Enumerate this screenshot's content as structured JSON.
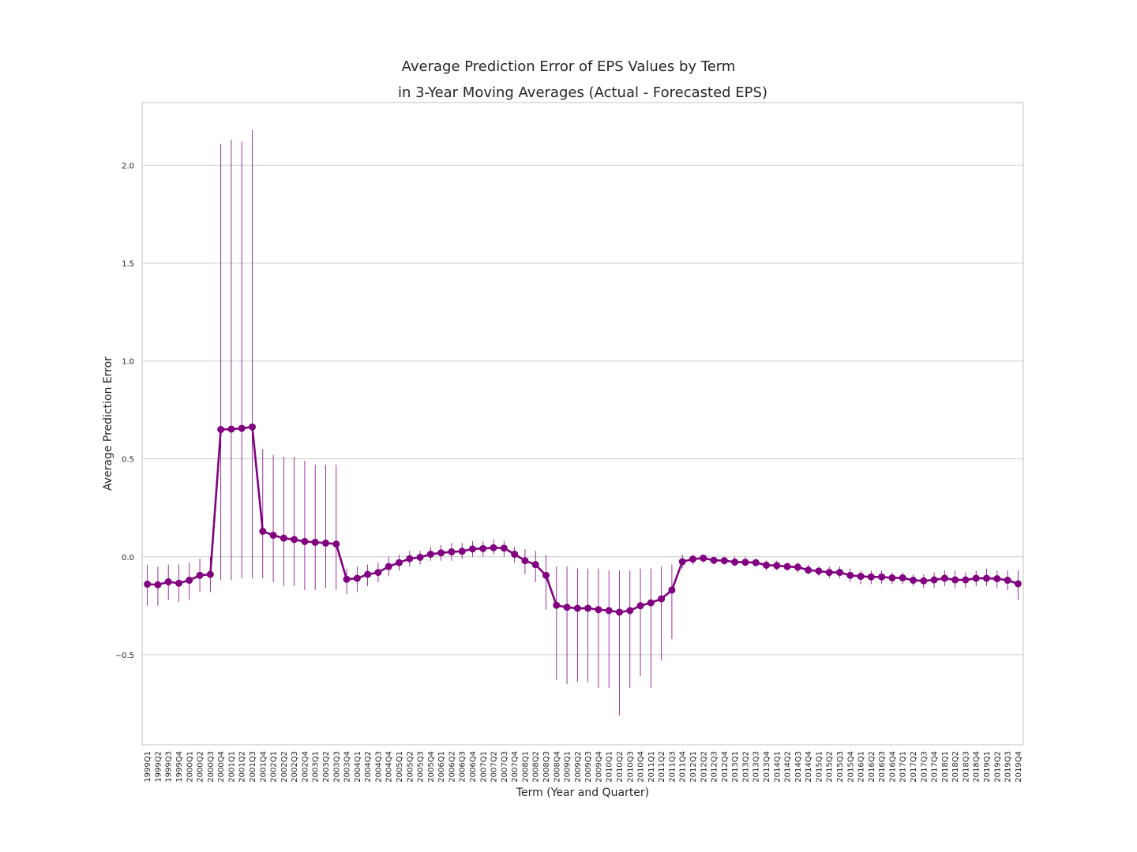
{
  "chart_data": {
    "type": "pointplot",
    "title": "Average Prediction Error of EPS Values by Term",
    "subtitle": "in 3-Year Moving Averages (Actual - Forecasted EPS)",
    "xlabel": "Term (Year and Quarter)",
    "ylabel": "Average Prediction Error",
    "color": "#800080",
    "grid": true,
    "categories": [
      "1999Q1",
      "1999Q2",
      "1999Q3",
      "1999Q4",
      "2000Q1",
      "2000Q2",
      "2000Q3",
      "2000Q4",
      "2001Q1",
      "2001Q2",
      "2001Q3",
      "2001Q4",
      "2002Q1",
      "2002Q2",
      "2002Q3",
      "2002Q4",
      "2003Q1",
      "2003Q2",
      "2003Q3",
      "2003Q4",
      "2004Q1",
      "2004Q2",
      "2004Q3",
      "2004Q4",
      "2005Q1",
      "2005Q2",
      "2005Q3",
      "2005Q4",
      "2006Q1",
      "2006Q2",
      "2006Q3",
      "2006Q4",
      "2007Q1",
      "2007Q2",
      "2007Q3",
      "2007Q4",
      "2008Q1",
      "2008Q2",
      "2008Q3",
      "2008Q4",
      "2009Q1",
      "2009Q2",
      "2009Q3",
      "2009Q4",
      "2010Q1",
      "2010Q2",
      "2010Q3",
      "2010Q4",
      "2011Q1",
      "2011Q2",
      "2011Q3",
      "2011Q4",
      "2012Q1",
      "2012Q2",
      "2012Q3",
      "2012Q4",
      "2013Q1",
      "2013Q2",
      "2013Q3",
      "2013Q4",
      "2014Q1",
      "2014Q2",
      "2014Q3",
      "2014Q4",
      "2015Q1",
      "2015Q2",
      "2015Q3",
      "2015Q4",
      "2016Q1",
      "2016Q2",
      "2016Q3",
      "2016Q4",
      "2017Q1",
      "2017Q2",
      "2017Q3",
      "2017Q4",
      "2018Q1",
      "2018Q2",
      "2018Q3",
      "2018Q4",
      "2019Q1",
      "2019Q2",
      "2019Q3",
      "2019Q4"
    ],
    "values": [
      -0.14,
      -0.143,
      -0.128,
      -0.135,
      -0.12,
      -0.095,
      -0.09,
      0.65,
      0.652,
      0.656,
      0.663,
      0.13,
      0.11,
      0.095,
      0.088,
      0.078,
      0.074,
      0.07,
      0.065,
      -0.115,
      -0.11,
      -0.09,
      -0.08,
      -0.05,
      -0.03,
      -0.01,
      -0.003,
      0.013,
      0.02,
      0.025,
      0.028,
      0.04,
      0.042,
      0.046,
      0.044,
      0.013,
      -0.02,
      -0.04,
      -0.095,
      -0.248,
      -0.258,
      -0.263,
      -0.263,
      -0.27,
      -0.275,
      -0.283,
      -0.275,
      -0.25,
      -0.235,
      -0.215,
      -0.17,
      -0.025,
      -0.012,
      -0.007,
      -0.018,
      -0.02,
      -0.027,
      -0.028,
      -0.03,
      -0.043,
      -0.045,
      -0.05,
      -0.053,
      -0.068,
      -0.073,
      -0.08,
      -0.08,
      -0.095,
      -0.1,
      -0.103,
      -0.103,
      -0.108,
      -0.108,
      -0.12,
      -0.123,
      -0.118,
      -0.11,
      -0.118,
      -0.118,
      -0.11,
      -0.11,
      -0.112,
      -0.12,
      -0.138
    ],
    "ci_low": [
      -0.25,
      -0.25,
      -0.22,
      -0.23,
      -0.22,
      -0.18,
      -0.18,
      -0.12,
      -0.12,
      -0.11,
      -0.11,
      -0.11,
      -0.13,
      -0.15,
      -0.15,
      -0.17,
      -0.17,
      -0.16,
      -0.17,
      -0.19,
      -0.18,
      -0.15,
      -0.13,
      -0.1,
      -0.07,
      -0.05,
      -0.04,
      -0.02,
      -0.02,
      -0.02,
      -0.01,
      0.0,
      0.0,
      0.01,
      0.0,
      -0.03,
      -0.09,
      -0.13,
      -0.27,
      -0.63,
      -0.65,
      -0.64,
      -0.64,
      -0.67,
      -0.67,
      -0.81,
      -0.67,
      -0.61,
      -0.67,
      -0.53,
      -0.42,
      -0.06,
      -0.04,
      -0.03,
      -0.04,
      -0.04,
      -0.05,
      -0.05,
      -0.05,
      -0.07,
      -0.07,
      -0.07,
      -0.08,
      -0.09,
      -0.1,
      -0.11,
      -0.11,
      -0.13,
      -0.14,
      -0.14,
      -0.14,
      -0.14,
      -0.14,
      -0.15,
      -0.16,
      -0.16,
      -0.15,
      -0.16,
      -0.16,
      -0.15,
      -0.15,
      -0.16,
      -0.17,
      -0.22
    ],
    "ci_high": [
      -0.04,
      -0.05,
      -0.04,
      -0.04,
      -0.03,
      -0.01,
      0.0,
      2.11,
      2.13,
      2.12,
      2.18,
      0.55,
      0.52,
      0.51,
      0.51,
      0.49,
      0.47,
      0.47,
      0.47,
      -0.06,
      -0.05,
      -0.04,
      -0.03,
      0.0,
      0.01,
      0.03,
      0.03,
      0.05,
      0.06,
      0.07,
      0.07,
      0.08,
      0.08,
      0.09,
      0.08,
      0.05,
      0.04,
      0.03,
      0.01,
      -0.05,
      -0.05,
      -0.06,
      -0.06,
      -0.06,
      -0.07,
      -0.07,
      -0.07,
      -0.06,
      -0.06,
      -0.05,
      -0.04,
      0.01,
      0.01,
      0.01,
      0.0,
      0.0,
      0.0,
      0.0,
      -0.01,
      -0.02,
      -0.02,
      -0.03,
      -0.03,
      -0.04,
      -0.05,
      -0.05,
      -0.05,
      -0.06,
      -0.07,
      -0.07,
      -0.07,
      -0.08,
      -0.08,
      -0.09,
      -0.09,
      -0.08,
      -0.07,
      -0.07,
      -0.08,
      -0.07,
      -0.06,
      -0.07,
      -0.07,
      -0.07
    ],
    "ylim": [
      -0.96,
      2.32
    ],
    "yticks": [
      {
        "value": -0.5,
        "label": "−0.5"
      },
      {
        "value": 0,
        "label": "0.0"
      },
      0.5,
      {
        "value": 1,
        "label": "1.0"
      },
      1.5,
      {
        "value": 2,
        "label": "2.0"
      }
    ]
  }
}
